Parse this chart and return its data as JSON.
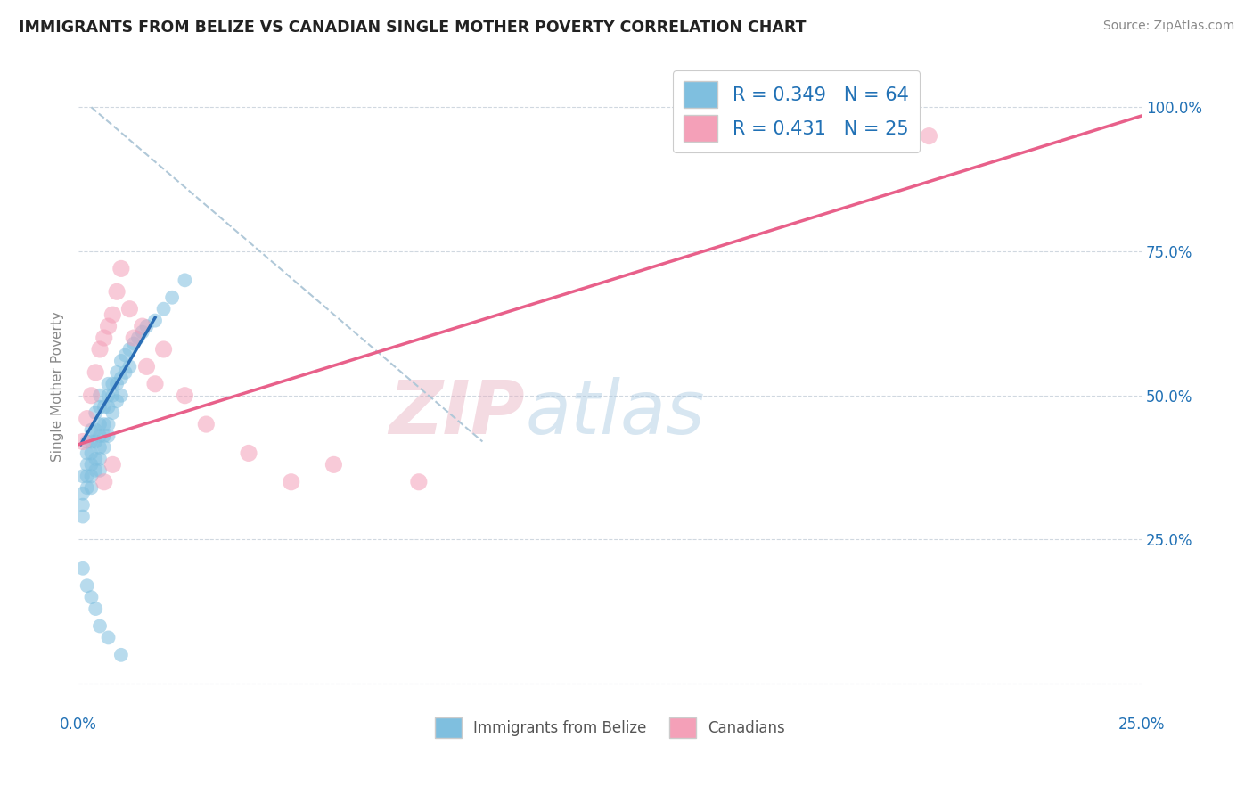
{
  "title": "IMMIGRANTS FROM BELIZE VS CANADIAN SINGLE MOTHER POVERTY CORRELATION CHART",
  "source": "Source: ZipAtlas.com",
  "ylabel": "Single Mother Poverty",
  "ytick_labels": [
    "",
    "25.0%",
    "50.0%",
    "75.0%",
    "100.0%"
  ],
  "ytick_values": [
    0,
    0.25,
    0.5,
    0.75,
    1.0
  ],
  "xtick_labels": [
    "0.0%",
    "",
    "",
    "",
    "",
    "25.0%"
  ],
  "xtick_values": [
    0.0,
    0.05,
    0.1,
    0.15,
    0.2,
    0.25
  ],
  "xlim": [
    0.0,
    0.25
  ],
  "ylim": [
    -0.05,
    1.08
  ],
  "blue_color": "#7fbfdf",
  "pink_color": "#f4a0b8",
  "blue_line_color": "#2a6db5",
  "pink_line_color": "#e8608a",
  "dashed_line_color": "#b0c8d8",
  "watermark_zip": "ZIP",
  "watermark_atlas": "atlas",
  "blue_scatter_x": [
    0.001,
    0.001,
    0.001,
    0.001,
    0.002,
    0.002,
    0.002,
    0.002,
    0.002,
    0.003,
    0.003,
    0.003,
    0.003,
    0.003,
    0.003,
    0.004,
    0.004,
    0.004,
    0.004,
    0.004,
    0.005,
    0.005,
    0.005,
    0.005,
    0.005,
    0.005,
    0.005,
    0.006,
    0.006,
    0.006,
    0.006,
    0.007,
    0.007,
    0.007,
    0.007,
    0.007,
    0.008,
    0.008,
    0.008,
    0.009,
    0.009,
    0.009,
    0.01,
    0.01,
    0.01,
    0.011,
    0.011,
    0.012,
    0.012,
    0.013,
    0.014,
    0.015,
    0.016,
    0.018,
    0.02,
    0.022,
    0.025,
    0.001,
    0.002,
    0.003,
    0.004,
    0.005,
    0.007,
    0.01
  ],
  "blue_scatter_y": [
    0.36,
    0.33,
    0.31,
    0.29,
    0.42,
    0.4,
    0.38,
    0.36,
    0.34,
    0.44,
    0.42,
    0.4,
    0.38,
    0.36,
    0.34,
    0.47,
    0.44,
    0.42,
    0.39,
    0.37,
    0.5,
    0.48,
    0.45,
    0.43,
    0.41,
    0.39,
    0.37,
    0.48,
    0.45,
    0.43,
    0.41,
    0.52,
    0.5,
    0.48,
    0.45,
    0.43,
    0.52,
    0.5,
    0.47,
    0.54,
    0.52,
    0.49,
    0.56,
    0.53,
    0.5,
    0.57,
    0.54,
    0.58,
    0.55,
    0.59,
    0.6,
    0.61,
    0.62,
    0.63,
    0.65,
    0.67,
    0.7,
    0.2,
    0.17,
    0.15,
    0.13,
    0.1,
    0.08,
    0.05
  ],
  "pink_scatter_x": [
    0.001,
    0.002,
    0.003,
    0.004,
    0.005,
    0.006,
    0.007,
    0.008,
    0.009,
    0.01,
    0.012,
    0.013,
    0.015,
    0.016,
    0.018,
    0.02,
    0.025,
    0.03,
    0.04,
    0.05,
    0.06,
    0.08,
    0.2,
    0.006,
    0.008
  ],
  "pink_scatter_y": [
    0.42,
    0.46,
    0.5,
    0.54,
    0.58,
    0.6,
    0.62,
    0.64,
    0.68,
    0.72,
    0.65,
    0.6,
    0.62,
    0.55,
    0.52,
    0.58,
    0.5,
    0.45,
    0.4,
    0.35,
    0.38,
    0.35,
    0.95,
    0.35,
    0.38
  ],
  "blue_trend_x": [
    0.0005,
    0.018
  ],
  "blue_trend_y": [
    0.415,
    0.635
  ],
  "pink_trend_x": [
    0.0,
    0.25
  ],
  "pink_trend_y": [
    0.415,
    0.985
  ],
  "dashed_trend_x": [
    0.003,
    0.095
  ],
  "dashed_trend_y": [
    1.0,
    0.42
  ]
}
